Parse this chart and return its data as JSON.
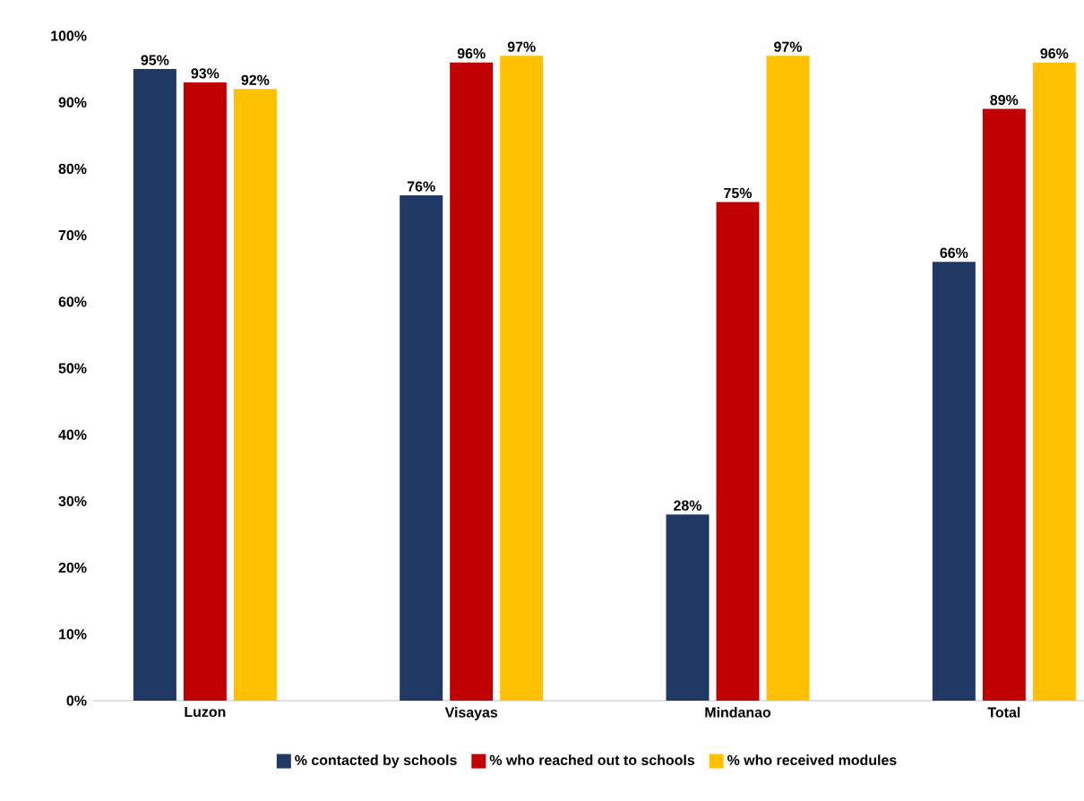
{
  "chart_data": {
    "type": "bar",
    "categories": [
      "Luzon",
      "Visayas",
      "Mindanao",
      "Total"
    ],
    "series": [
      {
        "name": "% contacted by schools",
        "color": "#203864",
        "values": [
          95,
          76,
          28,
          66
        ],
        "value_labels": [
          "95%",
          "76%",
          "28%",
          "66%"
        ]
      },
      {
        "name": "% who reached out to schools",
        "color": "#c00000",
        "values": [
          93,
          96,
          75,
          89
        ],
        "value_labels": [
          "93%",
          "96%",
          "75%",
          "89%"
        ]
      },
      {
        "name": "% who received modules",
        "color": "#ffc000",
        "values": [
          92,
          97,
          97,
          96
        ],
        "value_labels": [
          "92%",
          "97%",
          "97%",
          "96%"
        ]
      }
    ],
    "ylim": [
      0,
      100
    ],
    "yticks": [
      {
        "value": 0,
        "label": "0%"
      },
      {
        "value": 10,
        "label": "10%"
      },
      {
        "value": 20,
        "label": "20%"
      },
      {
        "value": 30,
        "label": "30%"
      },
      {
        "value": 40,
        "label": "40%"
      },
      {
        "value": 50,
        "label": "50%"
      },
      {
        "value": 60,
        "label": "60%"
      },
      {
        "value": 70,
        "label": "70%"
      },
      {
        "value": 80,
        "label": "80%"
      },
      {
        "value": 90,
        "label": "90%"
      },
      {
        "value": 100,
        "label": "100%"
      }
    ],
    "grid": false,
    "legend": "bottom"
  }
}
